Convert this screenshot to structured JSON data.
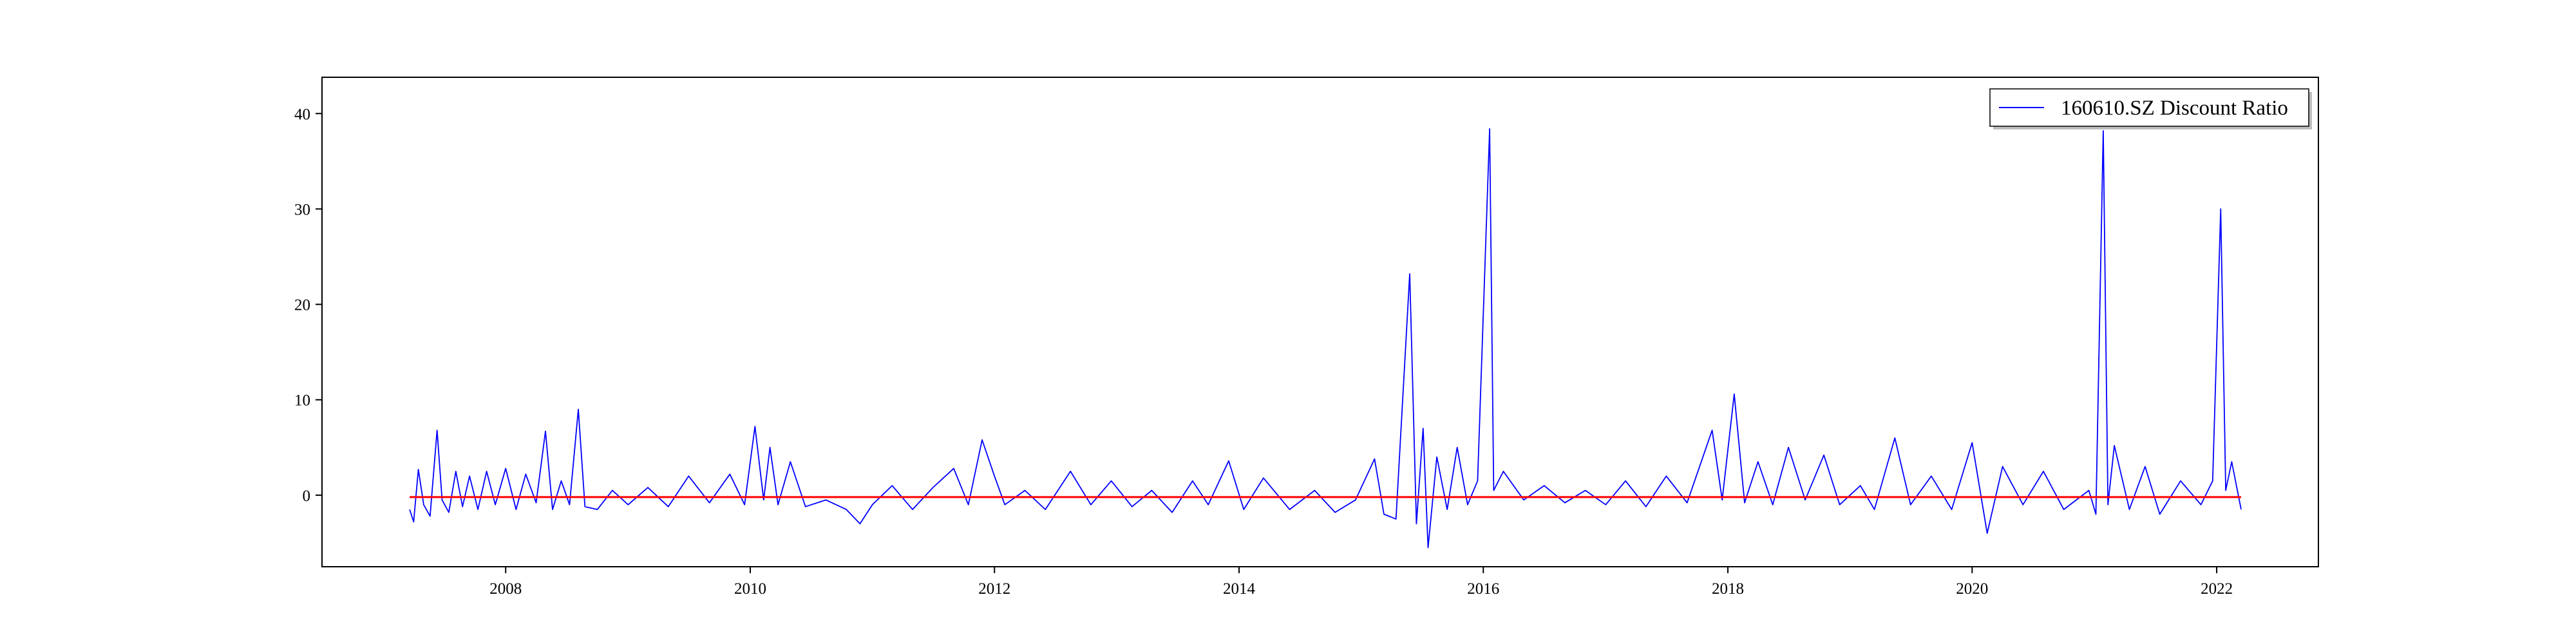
{
  "chart_data": {
    "type": "line",
    "title": "",
    "xlabel": "",
    "ylabel": "",
    "xlim": [
      "2006-07-01",
      "2022-11-01"
    ],
    "ylim": [
      -7.5,
      43.8
    ],
    "x_ticks": [
      "2008",
      "2010",
      "2012",
      "2014",
      "2016",
      "2018",
      "2020",
      "2022"
    ],
    "y_ticks": [
      0,
      10,
      20,
      30,
      40
    ],
    "grid": false,
    "legend": {
      "placement": "top-right",
      "entries": [
        "160610.SZ Discount Ratio"
      ]
    },
    "series": [
      {
        "name": "160610.SZ Discount Ratio",
        "color": "#0000ff",
        "points": [
          [
            "2007-03-20",
            -1.5
          ],
          [
            "2007-04-01",
            -2.8
          ],
          [
            "2007-04-15",
            2.7
          ],
          [
            "2007-05-01",
            -1.0
          ],
          [
            "2007-05-20",
            -2.2
          ],
          [
            "2007-06-10",
            6.8
          ],
          [
            "2007-06-25",
            -0.5
          ],
          [
            "2007-07-15",
            -1.8
          ],
          [
            "2007-08-05",
            2.5
          ],
          [
            "2007-08-25",
            -1.2
          ],
          [
            "2007-09-15",
            2.0
          ],
          [
            "2007-10-10",
            -1.5
          ],
          [
            "2007-11-05",
            2.5
          ],
          [
            "2007-12-01",
            -1.0
          ],
          [
            "2008-01-01",
            2.8
          ],
          [
            "2008-02-01",
            -1.5
          ],
          [
            "2008-03-01",
            2.2
          ],
          [
            "2008-04-01",
            -0.8
          ],
          [
            "2008-04-29",
            6.7
          ],
          [
            "2008-05-20",
            -1.5
          ],
          [
            "2008-06-15",
            1.5
          ],
          [
            "2008-07-10",
            -1.0
          ],
          [
            "2008-08-05",
            9.0
          ],
          [
            "2008-08-25",
            -1.2
          ],
          [
            "2008-10-01",
            -1.5
          ],
          [
            "2008-11-15",
            0.5
          ],
          [
            "2009-01-01",
            -1.0
          ],
          [
            "2009-03-01",
            0.8
          ],
          [
            "2009-05-01",
            -1.2
          ],
          [
            "2009-07-01",
            2.0
          ],
          [
            "2009-09-01",
            -0.8
          ],
          [
            "2009-11-01",
            2.2
          ],
          [
            "2009-12-15",
            -1.0
          ],
          [
            "2010-01-15",
            7.2
          ],
          [
            "2010-02-10",
            -0.5
          ],
          [
            "2010-03-01",
            5.0
          ],
          [
            "2010-03-25",
            -1.0
          ],
          [
            "2010-05-01",
            3.5
          ],
          [
            "2010-06-15",
            -1.2
          ],
          [
            "2010-08-15",
            -0.5
          ],
          [
            "2010-10-15",
            -1.5
          ],
          [
            "2010-11-25",
            -3.0
          ],
          [
            "2011-01-01",
            -1.0
          ],
          [
            "2011-03-01",
            1.0
          ],
          [
            "2011-05-01",
            -1.5
          ],
          [
            "2011-07-01",
            0.8
          ],
          [
            "2011-09-01",
            2.8
          ],
          [
            "2011-10-15",
            -1.0
          ],
          [
            "2011-11-25",
            5.8
          ],
          [
            "2012-01-01",
            2.0
          ],
          [
            "2012-02-01",
            -1.0
          ],
          [
            "2012-04-01",
            0.5
          ],
          [
            "2012-06-01",
            -1.5
          ],
          [
            "2012-08-15",
            2.5
          ],
          [
            "2012-10-15",
            -1.0
          ],
          [
            "2012-12-15",
            1.5
          ],
          [
            "2013-02-15",
            -1.2
          ],
          [
            "2013-04-15",
            0.5
          ],
          [
            "2013-06-15",
            -1.8
          ],
          [
            "2013-08-15",
            1.5
          ],
          [
            "2013-10-01",
            -1.0
          ],
          [
            "2013-12-01",
            3.6
          ],
          [
            "2014-01-15",
            -1.5
          ],
          [
            "2014-03-15",
            1.8
          ],
          [
            "2014-06-01",
            -1.5
          ],
          [
            "2014-08-15",
            0.5
          ],
          [
            "2014-10-15",
            -1.8
          ],
          [
            "2014-12-15",
            -0.5
          ],
          [
            "2015-02-10",
            3.8
          ],
          [
            "2015-03-10",
            -2.0
          ],
          [
            "2015-04-15",
            -2.5
          ],
          [
            "2015-05-26",
            23.2
          ],
          [
            "2015-06-15",
            -3.0
          ],
          [
            "2015-07-05",
            7.0
          ],
          [
            "2015-07-20",
            -5.5
          ],
          [
            "2015-08-15",
            4.0
          ],
          [
            "2015-09-15",
            -1.5
          ],
          [
            "2015-10-15",
            5.0
          ],
          [
            "2015-11-15",
            -1.0
          ],
          [
            "2015-12-15",
            1.5
          ],
          [
            "2016-01-20",
            38.4
          ],
          [
            "2016-02-01",
            0.5
          ],
          [
            "2016-03-01",
            2.5
          ],
          [
            "2016-05-01",
            -0.5
          ],
          [
            "2016-07-01",
            1.0
          ],
          [
            "2016-09-01",
            -0.8
          ],
          [
            "2016-11-01",
            0.5
          ],
          [
            "2017-01-01",
            -1.0
          ],
          [
            "2017-03-01",
            1.5
          ],
          [
            "2017-05-01",
            -1.2
          ],
          [
            "2017-07-01",
            2.0
          ],
          [
            "2017-09-01",
            -0.8
          ],
          [
            "2017-11-15",
            6.8
          ],
          [
            "2017-12-15",
            -0.5
          ],
          [
            "2018-01-20",
            10.6
          ],
          [
            "2018-02-20",
            -0.8
          ],
          [
            "2018-04-01",
            3.5
          ],
          [
            "2018-05-15",
            -1.0
          ],
          [
            "2018-07-01",
            5.0
          ],
          [
            "2018-08-20",
            -0.5
          ],
          [
            "2018-10-15",
            4.2
          ],
          [
            "2018-12-01",
            -1.0
          ],
          [
            "2019-02-01",
            1.0
          ],
          [
            "2019-03-15",
            -1.5
          ],
          [
            "2019-05-15",
            6.0
          ],
          [
            "2019-07-01",
            -1.0
          ],
          [
            "2019-09-01",
            2.0
          ],
          [
            "2019-11-01",
            -1.5
          ],
          [
            "2020-01-01",
            5.5
          ],
          [
            "2020-02-15",
            -4.0
          ],
          [
            "2020-04-01",
            3.0
          ],
          [
            "2020-06-01",
            -1.0
          ],
          [
            "2020-08-01",
            2.5
          ],
          [
            "2020-10-01",
            -1.5
          ],
          [
            "2020-12-15",
            0.5
          ],
          [
            "2021-01-05",
            -2.0
          ],
          [
            "2021-01-27",
            38.2
          ],
          [
            "2021-02-10",
            -1.0
          ],
          [
            "2021-03-01",
            5.2
          ],
          [
            "2021-04-15",
            -1.5
          ],
          [
            "2021-06-01",
            3.0
          ],
          [
            "2021-07-15",
            -2.0
          ],
          [
            "2021-09-15",
            1.5
          ],
          [
            "2021-11-15",
            -1.0
          ],
          [
            "2021-12-20",
            1.5
          ],
          [
            "2022-01-13",
            30.0
          ],
          [
            "2022-01-28",
            0.5
          ],
          [
            "2022-02-15",
            3.5
          ],
          [
            "2022-03-15",
            -1.5
          ]
        ]
      },
      {
        "color": "#ff0000",
        "points": [
          [
            "2007-03-20",
            -0.2
          ],
          [
            "2022-03-15",
            -0.2
          ]
        ]
      }
    ]
  }
}
